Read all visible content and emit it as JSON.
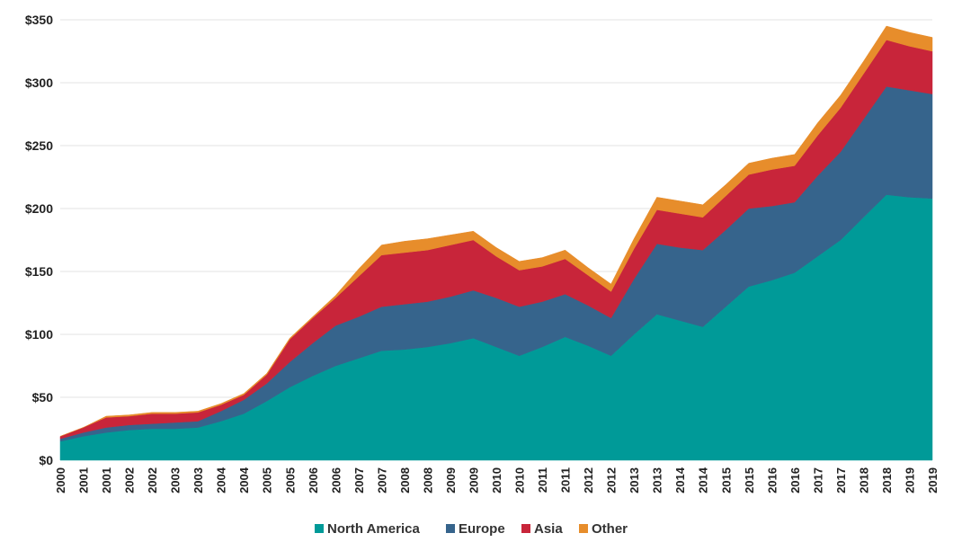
{
  "chart_data": {
    "type": "area",
    "stacked": true,
    "title": "",
    "xlabel": "",
    "ylabel": "",
    "ylim": [
      0,
      350
    ],
    "yticks": [
      0,
      50,
      100,
      150,
      200,
      250,
      300,
      350
    ],
    "ytick_labels": [
      "$0",
      "$50",
      "$100",
      "$150",
      "$200",
      "$250",
      "$300",
      "$350"
    ],
    "grid": true,
    "legend_position": "bottom",
    "x": [
      "2000",
      "2001",
      "2001",
      "2002",
      "2002",
      "2003",
      "2003",
      "2004",
      "2004",
      "2005",
      "2005",
      "2006",
      "2006",
      "2007",
      "2007",
      "2008",
      "2008",
      "2009",
      "2009",
      "2010",
      "2010",
      "2011",
      "2011",
      "2012",
      "2012",
      "2013",
      "2013",
      "2014",
      "2014",
      "2015",
      "2015",
      "2016",
      "2016",
      "2017",
      "2017",
      "2018",
      "2018",
      "2019",
      "2019"
    ],
    "series": [
      {
        "name": "North America",
        "color": "#009a98",
        "values": [
          15,
          19,
          22,
          24,
          25,
          25,
          26,
          31,
          37,
          47,
          58,
          67,
          75,
          81,
          87,
          88,
          90,
          93,
          97,
          90,
          83,
          90,
          98,
          91,
          83,
          100,
          116,
          111,
          106,
          122,
          138,
          143,
          149,
          162,
          175,
          193,
          211,
          209,
          208
        ]
      },
      {
        "name": "Europe",
        "color": "#36648c",
        "values": [
          2,
          3,
          4,
          4,
          4,
          5,
          5,
          8,
          11,
          14,
          20,
          26,
          32,
          33,
          35,
          36,
          36,
          37,
          38,
          39,
          39,
          36,
          34,
          32,
          30,
          44,
          56,
          58,
          61,
          61,
          62,
          59,
          56,
          64,
          70,
          78,
          86,
          85,
          83
        ]
      },
      {
        "name": "Asia",
        "color": "#c8253a",
        "values": [
          2,
          4,
          8,
          7,
          8,
          7,
          7,
          5,
          4,
          7,
          18,
          20,
          22,
          32,
          41,
          41,
          41,
          41,
          40,
          33,
          29,
          28,
          28,
          24,
          21,
          24,
          27,
          27,
          26,
          27,
          27,
          29,
          29,
          32,
          35,
          36,
          37,
          35,
          34
        ]
      },
      {
        "name": "Other",
        "color": "#e78d2b",
        "values": [
          0,
          0,
          1,
          1,
          1,
          1,
          1,
          1,
          1,
          1,
          1,
          1,
          2,
          6,
          8,
          9,
          9,
          8,
          7,
          7,
          7,
          7,
          7,
          6,
          6,
          8,
          10,
          10,
          10,
          9,
          9,
          9,
          9,
          10,
          10,
          10,
          11,
          11,
          11
        ]
      }
    ]
  }
}
